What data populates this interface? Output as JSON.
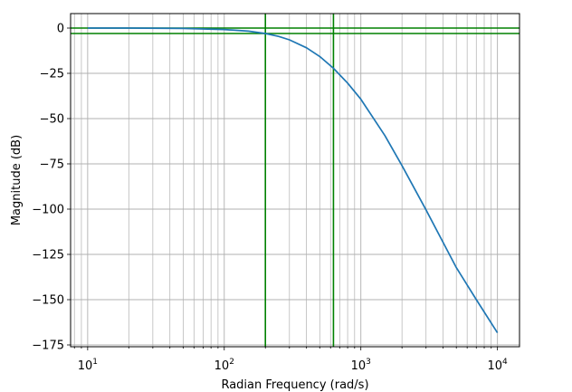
{
  "chart_data": {
    "type": "line",
    "title": "",
    "xlabel": "Radian Frequency (rad/s)",
    "ylabel": "Magnitude (dB)",
    "xscale": "log",
    "xlim": [
      7.5,
      14500
    ],
    "ylim": [
      -176,
      8
    ],
    "grid": "both (major and minor on log x axis)",
    "x_major_ticks": [
      10,
      100,
      1000,
      10000
    ],
    "x_tick_labels": [
      {
        "base": "10",
        "exp": "1"
      },
      {
        "base": "10",
        "exp": "2"
      },
      {
        "base": "10",
        "exp": "3"
      },
      {
        "base": "10",
        "exp": "4"
      }
    ],
    "y_ticks": [
      0,
      -25,
      -50,
      -75,
      -100,
      -125,
      -150,
      -175
    ],
    "y_tick_labels": [
      "0",
      "−25",
      "−50",
      "−75",
      "−100",
      "−125",
      "−150",
      "−175"
    ],
    "series": [
      {
        "color": "#1f77b4",
        "x": [
          10,
          20,
          50,
          100,
          150,
          200,
          250,
          300,
          400,
          500,
          630,
          800,
          1000,
          1500,
          2000,
          3000,
          5000,
          7000,
          10000
        ],
        "y": [
          0,
          -0.01,
          -0.2,
          -0.8,
          -1.7,
          -3.0,
          -4.6,
          -6.5,
          -10.9,
          -15.7,
          -22.2,
          -30.4,
          -39.3,
          -59.4,
          -75.9,
          -100.4,
          -132.3,
          -150.0,
          -168.3
        ]
      }
    ],
    "reference_lines": {
      "color": "#008000",
      "horizontal": [
        0,
        -3
      ],
      "vertical": [
        200,
        630
      ]
    },
    "colors": {
      "line": "#1f77b4",
      "reference": "#008000",
      "grid": "#b0b0b0"
    }
  }
}
